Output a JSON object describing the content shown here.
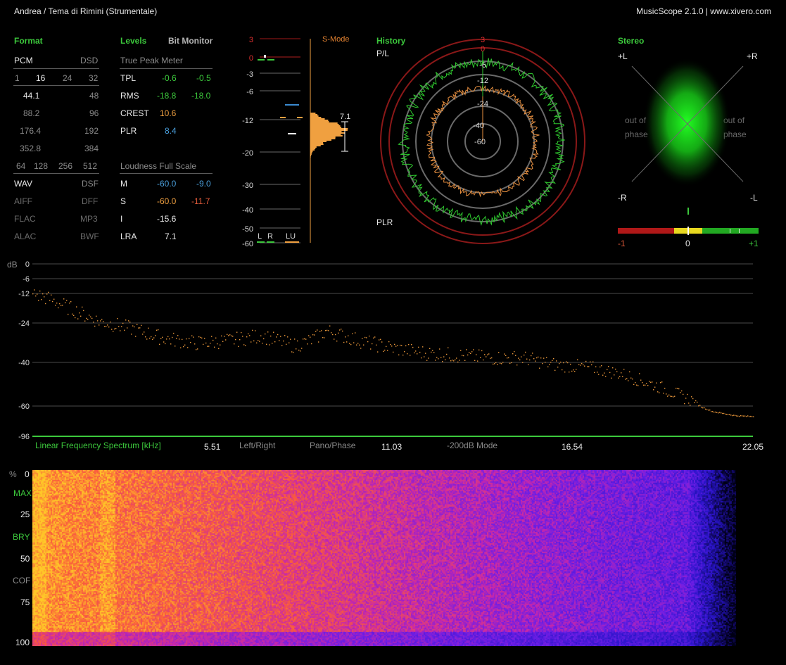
{
  "header": {
    "title": "Andrea / Tema di Rimini (Strumentale)",
    "app": "MusicScope 2.1.0 | www.xivero.com"
  },
  "format": {
    "heading": "Format",
    "pcm": "PCM",
    "dsd": "DSD",
    "bits": [
      "1",
      "16",
      "24",
      "32"
    ],
    "rates_pcm": [
      "44.1",
      "88.2",
      "176.4",
      "352.8"
    ],
    "rates_dsd": [
      "48",
      "96",
      "192",
      "384"
    ],
    "dsd_rates": [
      "64",
      "128",
      "256",
      "512"
    ],
    "containers_left": [
      "WAV",
      "AIFF",
      "FLAC",
      "ALAC"
    ],
    "containers_right": [
      "DSF",
      "DFF",
      "MP3",
      "BWF"
    ]
  },
  "levels": {
    "heading": "Levels",
    "bit_monitor": "Bit Monitor",
    "true_peak_label": "True Peak Meter",
    "rows": [
      {
        "label": "TPL",
        "l": "-0.6",
        "r": "-0.5"
      },
      {
        "label": "RMS",
        "l": "-18.8",
        "r": "-18.0"
      },
      {
        "label": "CREST",
        "l": "10.6",
        "r": ""
      },
      {
        "label": "PLR",
        "l": "8.4",
        "r": ""
      }
    ],
    "loudness_label": "Loudness Full Scale",
    "loud_rows": [
      {
        "label": "M",
        "l": "-60.0",
        "r": "-9.0"
      },
      {
        "label": "S",
        "l": "-60.0",
        "r": "-11.7"
      },
      {
        "label": "I",
        "l": "-15.6",
        "r": ""
      },
      {
        "label": "LRA",
        "l": "7.1",
        "r": ""
      }
    ],
    "colors": {
      "green": "#3cc83c",
      "blue": "#4a9fdc",
      "orange": "#f0a040",
      "red": "#e05a3a"
    }
  },
  "meter": {
    "scale": [
      "3",
      "0",
      "-3",
      "-6",
      "-12",
      "-20",
      "-30",
      "-40",
      "-50",
      "-60"
    ],
    "smode": "S-Mode",
    "plr_value": "7.1",
    "channels": [
      "L",
      "R",
      "LU"
    ]
  },
  "history": {
    "heading": "History",
    "pl": "P/L",
    "plr": "PLR",
    "rings": [
      "3",
      "0",
      "-6",
      "-12",
      "-24",
      "-40",
      "-60"
    ]
  },
  "stereo": {
    "heading": "Stereo",
    "plus_l": "+L",
    "plus_r": "+R",
    "minus_r": "-R",
    "minus_l": "-L",
    "out_of_phase_1": "out of",
    "out_of_phase_2": "phase",
    "corr_labels": [
      "-1",
      "0",
      "+1"
    ]
  },
  "spectrum": {
    "db_unit": "dB",
    "db_ticks": [
      "0",
      "-6",
      "-12",
      "-24",
      "-40",
      "-60",
      "-96"
    ],
    "title": "Linear Frequency Spectrum [kHz]",
    "freq_ticks": [
      "5.51",
      "11.03",
      "16.54",
      "22.05"
    ],
    "mode_left_right": "Left/Right",
    "mode_pano": "Pano/Phase",
    "mode_200": "-200dB Mode"
  },
  "spectrogram": {
    "unit": "%",
    "ticks": [
      "0",
      "MAX",
      "25",
      "BRY",
      "50",
      "COF",
      "75",
      "100"
    ]
  },
  "chart_data": [
    {
      "type": "line",
      "title": "Linear Frequency Spectrum [kHz]",
      "xlabel": "Linear Frequency Spectrum [kHz]",
      "ylabel": "dB",
      "xlim": [
        0,
        22.05
      ],
      "ylim": [
        -96,
        0
      ],
      "x": [
        0.0,
        0.5,
        1.0,
        2.0,
        3.0,
        4.0,
        5.0,
        6.0,
        7.0,
        8.0,
        8.5,
        9.0,
        10.0,
        11.0,
        12.0,
        13.0,
        14.0,
        15.0,
        16.0,
        17.0,
        18.0,
        19.0,
        19.8,
        20.3,
        20.8,
        21.5,
        22.05
      ],
      "series": [
        {
          "values": [
            -12,
            -14,
            -17,
            -23,
            -26,
            -30,
            -32,
            -31,
            -29,
            -33,
            -31,
            -27,
            -31,
            -34,
            -36,
            -37,
            -38,
            -38,
            -41,
            -42,
            -45,
            -50,
            -55,
            -58,
            -66,
            -71,
            -72
          ]
        }
      ]
    }
  ]
}
